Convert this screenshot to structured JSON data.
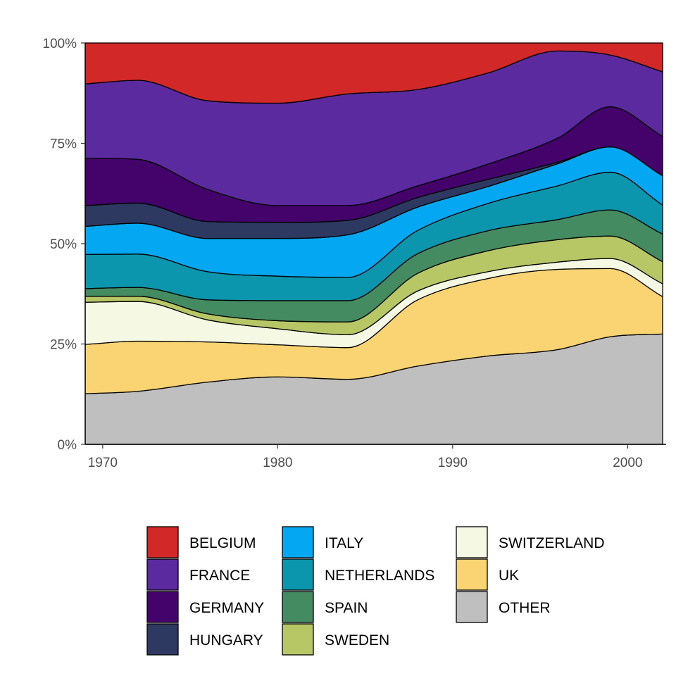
{
  "chart_data": {
    "type": "area",
    "stacked": true,
    "normalized": true,
    "title": "",
    "xlabel": "",
    "ylabel": "",
    "xlim": [
      1969,
      2002.2
    ],
    "ylim": [
      0,
      100
    ],
    "x_ticks": [
      1970,
      1980,
      1990,
      2000
    ],
    "x_tick_labels": [
      "1970",
      "1980",
      "1990",
      "2000"
    ],
    "y_ticks": [
      0,
      25,
      50,
      75,
      100
    ],
    "y_tick_labels": [
      "0%",
      "25%",
      "50%",
      "75%",
      "100%"
    ],
    "grid": false,
    "legend_position": "bottom",
    "x": [
      1969,
      1972,
      1976,
      1980,
      1984,
      1988,
      1992,
      1996,
      1999,
      2002
    ],
    "series": [
      {
        "name": "OTHER",
        "color": "#bfbfbf",
        "values": [
          12.6,
          13.2,
          15.5,
          16.8,
          16.2,
          19.5,
          22.0,
          23.6,
          26.8,
          27.5
        ]
      },
      {
        "name": "UK",
        "color": "#fad473",
        "values": [
          12.3,
          12.5,
          10.0,
          8.0,
          7.9,
          16.5,
          19.3,
          20.0,
          17.0,
          9.3
        ]
      },
      {
        "name": "SWITZERLAND",
        "color": "#f5f9e3",
        "values": [
          10.5,
          9.9,
          5.5,
          4.0,
          3.2,
          2.2,
          1.7,
          1.8,
          2.5,
          3.2
        ]
      },
      {
        "name": "SWEDEN",
        "color": "#b8c766",
        "values": [
          1.5,
          1.3,
          1.5,
          2.0,
          3.2,
          4.4,
          5.2,
          5.6,
          5.6,
          5.5
        ]
      },
      {
        "name": "SPAIN",
        "color": "#448b62",
        "values": [
          1.9,
          2.2,
          3.5,
          5.0,
          5.3,
          4.9,
          5.0,
          5.0,
          6.5,
          6.9
        ]
      },
      {
        "name": "NETHERLANDS",
        "color": "#0b96ad",
        "values": [
          8.5,
          8.3,
          7.0,
          6.1,
          5.8,
          5.8,
          6.8,
          8.4,
          9.4,
          7.2
        ]
      },
      {
        "name": "ITALY",
        "color": "#04a8f2",
        "values": [
          7.0,
          7.7,
          8.3,
          9.4,
          10.6,
          5.8,
          4.2,
          5.5,
          6.3,
          7.3
        ]
      },
      {
        "name": "HUNGARY",
        "color": "#2e3961",
        "values": [
          5.2,
          5.0,
          4.2,
          4.0,
          3.6,
          2.4,
          1.8,
          0.4,
          0.0,
          0.0
        ]
      },
      {
        "name": "GERMANY",
        "color": "#43036a",
        "values": [
          11.8,
          10.9,
          8.0,
          4.2,
          3.7,
          2.9,
          3.8,
          6.0,
          10.0,
          9.8
        ]
      },
      {
        "name": "FRANCE",
        "color": "#5b2a9e",
        "values": [
          18.5,
          19.7,
          22.1,
          25.5,
          27.8,
          24.0,
          22.7,
          21.7,
          12.9,
          16.1
        ]
      },
      {
        "name": "BELGIUM",
        "color": "#d32828",
        "values": [
          10.2,
          9.3,
          14.4,
          15.0,
          12.7,
          11.6,
          7.5,
          2.0,
          3.0,
          7.2
        ]
      }
    ],
    "legend_items": [
      {
        "name": "BELGIUM",
        "color": "#d32828"
      },
      {
        "name": "FRANCE",
        "color": "#5b2a9e"
      },
      {
        "name": "GERMANY",
        "color": "#43036a"
      },
      {
        "name": "HUNGARY",
        "color": "#2e3961"
      },
      {
        "name": "ITALY",
        "color": "#04a8f2"
      },
      {
        "name": "NETHERLANDS",
        "color": "#0b96ad"
      },
      {
        "name": "SPAIN",
        "color": "#448b62"
      },
      {
        "name": "SWEDEN",
        "color": "#b8c766"
      },
      {
        "name": "SWITZERLAND",
        "color": "#f5f9e3"
      },
      {
        "name": "UK",
        "color": "#fad473"
      },
      {
        "name": "OTHER",
        "color": "#bfbfbf"
      }
    ]
  }
}
